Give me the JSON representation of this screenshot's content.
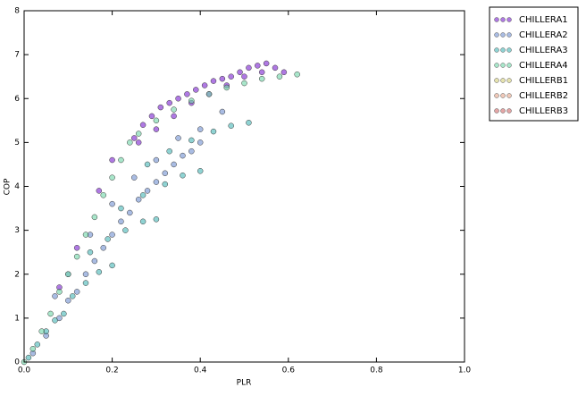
{
  "chart_data": {
    "type": "scatter",
    "x_label": "PLR",
    "y_label": "COP",
    "xlim": [
      0,
      1
    ],
    "ylim": [
      0,
      8
    ],
    "xticks": [
      {
        "value": 0,
        "label": "0.0"
      },
      {
        "value": 0.2,
        "label": "0.2"
      },
      {
        "value": 0.4,
        "label": "0.4"
      },
      {
        "value": 0.6,
        "label": "0.6"
      },
      {
        "value": 0.8,
        "label": "0.8"
      },
      {
        "value": 1,
        "label": "1.0"
      }
    ],
    "yticks": [
      0,
      1,
      2,
      3,
      4,
      5,
      6,
      7,
      8
    ],
    "legend": "outside-right",
    "series": [
      {
        "name": "CHILLERA1",
        "color": "#7a1fd0",
        "x": [
          0.25,
          0.27,
          0.29,
          0.31,
          0.33,
          0.35,
          0.37,
          0.39,
          0.41,
          0.43,
          0.45,
          0.47,
          0.49,
          0.51,
          0.53,
          0.55,
          0.57,
          0.59,
          0.26,
          0.3,
          0.34,
          0.38,
          0.42,
          0.46,
          0.5,
          0.54,
          0.2,
          0.17,
          0.12,
          0.08
        ],
        "values": [
          5.1,
          5.4,
          5.6,
          5.8,
          5.9,
          6.0,
          6.1,
          6.2,
          6.3,
          6.4,
          6.45,
          6.5,
          6.6,
          6.7,
          6.75,
          6.8,
          6.7,
          6.6,
          5.0,
          5.3,
          5.6,
          5.9,
          6.1,
          6.3,
          6.5,
          6.6,
          4.6,
          3.9,
          2.6,
          1.7
        ]
      },
      {
        "name": "CHILLERA2",
        "color": "#6f8fd0",
        "x": [
          0.02,
          0.05,
          0.08,
          0.1,
          0.12,
          0.14,
          0.16,
          0.18,
          0.2,
          0.22,
          0.24,
          0.26,
          0.28,
          0.3,
          0.32,
          0.34,
          0.36,
          0.38,
          0.4,
          0.15,
          0.2,
          0.25,
          0.3,
          0.35,
          0.4,
          0.45,
          0.1,
          0.07
        ],
        "values": [
          0.2,
          0.6,
          1.0,
          1.4,
          1.6,
          2.0,
          2.3,
          2.6,
          2.9,
          3.2,
          3.4,
          3.7,
          3.9,
          4.1,
          4.3,
          4.5,
          4.7,
          4.8,
          5.0,
          2.9,
          3.6,
          4.2,
          4.6,
          5.1,
          5.3,
          5.7,
          2.0,
          1.5
        ]
      },
      {
        "name": "CHILLERA3",
        "color": "#45b5b5",
        "x": [
          0.01,
          0.03,
          0.05,
          0.07,
          0.09,
          0.11,
          0.14,
          0.17,
          0.2,
          0.15,
          0.19,
          0.23,
          0.27,
          0.3,
          0.22,
          0.27,
          0.32,
          0.36,
          0.4,
          0.28,
          0.33,
          0.38,
          0.43,
          0.47,
          0.51
        ],
        "values": [
          0.1,
          0.4,
          0.7,
          0.95,
          1.1,
          1.5,
          1.8,
          2.05,
          2.2,
          2.5,
          2.8,
          3.0,
          3.2,
          3.25,
          3.5,
          3.8,
          4.05,
          4.25,
          4.35,
          4.5,
          4.8,
          5.05,
          5.25,
          5.38,
          5.45
        ]
      },
      {
        "name": "CHILLERA4",
        "color": "#6ed6a6",
        "x": [
          0.0,
          0.02,
          0.04,
          0.06,
          0.08,
          0.1,
          0.12,
          0.14,
          0.16,
          0.18,
          0.2,
          0.22,
          0.24,
          0.26,
          0.3,
          0.34,
          0.38,
          0.42,
          0.46,
          0.5,
          0.54,
          0.58,
          0.62
        ],
        "values": [
          0.0,
          0.3,
          0.7,
          1.1,
          1.6,
          2.0,
          2.4,
          2.9,
          3.3,
          3.8,
          4.2,
          4.6,
          5.0,
          5.2,
          5.5,
          5.75,
          5.95,
          6.1,
          6.25,
          6.35,
          6.45,
          6.5,
          6.55
        ]
      },
      {
        "name": "CHILLERB1",
        "color": "#d6d07a",
        "x": [],
        "values": []
      },
      {
        "name": "CHILLERB2",
        "color": "#e6a58a",
        "x": [],
        "values": []
      },
      {
        "name": "CHILLERB3",
        "color": "#d26a6a",
        "x": [],
        "values": []
      }
    ]
  }
}
